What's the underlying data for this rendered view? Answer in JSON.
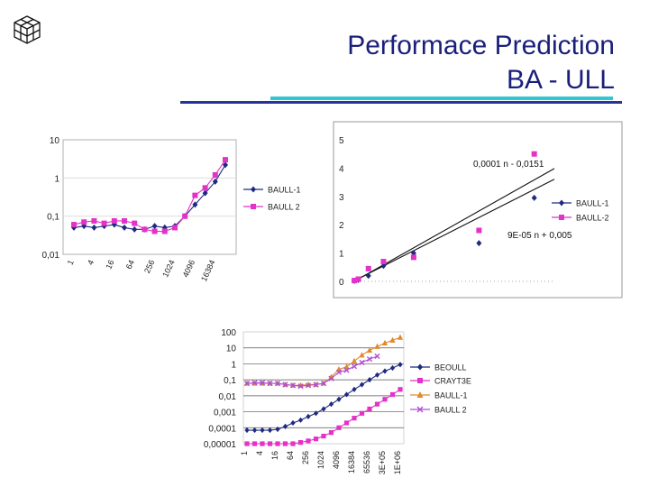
{
  "slide": {
    "title_line1": "Performace Prediction",
    "title_line2": "BA - ULL",
    "logo_icon": "cube-logo-icon",
    "colors": {
      "title": "#1a1f7a",
      "rule_blue": "#26339a",
      "rule_teal": "#33c6cf"
    }
  },
  "chart_data": [
    {
      "type": "line",
      "title": "",
      "xscale": "category",
      "yscale": "log",
      "categories": [
        "1",
        "2",
        "4",
        "8",
        "16",
        "32",
        "64",
        "128",
        "256",
        "512",
        "1024",
        "2048",
        "4096",
        "8192",
        "16384",
        "32768"
      ],
      "tick_labels": [
        "1",
        "4",
        "16",
        "64",
        "256",
        "1024",
        "4096",
        "16384"
      ],
      "y_ticks": [
        "10",
        "1",
        "0,1",
        "0,01"
      ],
      "ylim": [
        0.01,
        10
      ],
      "legend_position": "right",
      "series": [
        {
          "name": "BAULL-1",
          "marker": "diamond",
          "color": "#1f2a80",
          "values": [
            0.05,
            0.055,
            0.05,
            0.055,
            0.06,
            0.05,
            0.045,
            0.045,
            0.055,
            0.05,
            0.055,
            0.1,
            0.2,
            0.4,
            0.8,
            2.2
          ]
        },
        {
          "name": "BAULL 2",
          "marker": "square",
          "color": "#e431c8",
          "values": [
            0.06,
            0.07,
            0.075,
            0.065,
            0.075,
            0.075,
            0.065,
            0.045,
            0.04,
            0.04,
            0.05,
            0.1,
            0.35,
            0.55,
            1.2,
            3.0
          ]
        }
      ]
    },
    {
      "type": "scatter",
      "title": "",
      "xlabel": "",
      "ylabel": "",
      "ylim": [
        0,
        5
      ],
      "xlim": [
        0,
        40000
      ],
      "y_ticks": [
        "5",
        "4",
        "3",
        "2",
        "1",
        "0"
      ],
      "legend_position": "right",
      "annotations": [
        "0,0001 n - 0,0151",
        "9E-05 n + 0,005"
      ],
      "trendlines": [
        {
          "series": "BAULL-2",
          "slope": 0.0001,
          "intercept": -0.0151
        },
        {
          "series": "BAULL-1",
          "slope": 9e-05,
          "intercept": 0.005
        }
      ],
      "series": [
        {
          "name": "BAULL-1",
          "marker": "diamond",
          "color": "#1f2a80",
          "x": [
            200,
            1000,
            3000,
            6000,
            12000,
            25000,
            36000
          ],
          "y": [
            0.02,
            0.05,
            0.2,
            0.55,
            1.0,
            1.35,
            2.95
          ]
        },
        {
          "name": "BAULL-2",
          "marker": "square",
          "color": "#e431c8",
          "x": [
            200,
            1000,
            3000,
            6000,
            12000,
            25000,
            36000
          ],
          "y": [
            0.03,
            0.08,
            0.45,
            0.7,
            0.85,
            1.8,
            4.5
          ]
        }
      ]
    },
    {
      "type": "line",
      "title": "",
      "xscale": "category",
      "yscale": "log",
      "categories": [
        "1",
        "2",
        "4",
        "8",
        "16",
        "32",
        "64",
        "128",
        "256",
        "512",
        "1024",
        "2048",
        "4096",
        "8192",
        "16384",
        "32768",
        "65536",
        "131072",
        "262144",
        "524288",
        "1048576"
      ],
      "tick_labels": [
        "1",
        "4",
        "16",
        "64",
        "256",
        "1024",
        "4096",
        "16384",
        "65536",
        "3E+05",
        "1E+06"
      ],
      "y_ticks": [
        "100",
        "10",
        "1",
        "0,1",
        "0,01",
        "0,001",
        "0,0001",
        "0,00001"
      ],
      "ylim": [
        1e-05,
        100
      ],
      "legend_position": "right",
      "series": [
        {
          "name": "BEOULL",
          "marker": "diamond",
          "color": "#1f2a80",
          "values": [
            7e-05,
            7e-05,
            7e-05,
            7e-05,
            8e-05,
            0.00012,
            0.0002,
            0.0003,
            0.0005,
            0.0008,
            0.0015,
            0.003,
            0.006,
            0.012,
            0.025,
            0.05,
            0.1,
            0.2,
            0.35,
            0.55,
            0.9
          ]
        },
        {
          "name": "CRAYT3E",
          "marker": "square",
          "color": "#e431c8",
          "values": [
            1e-05,
            1e-05,
            1e-05,
            1e-05,
            1e-05,
            1e-05,
            1e-05,
            1.2e-05,
            1.5e-05,
            2e-05,
            3e-05,
            5e-05,
            0.0001,
            0.0002,
            0.0004,
            0.0008,
            0.0015,
            0.003,
            0.006,
            0.012,
            0.025
          ]
        },
        {
          "name": "BAULL-1",
          "marker": "triangle",
          "color": "#e08a2a",
          "values": [
            0.06,
            0.06,
            0.06,
            0.06,
            0.06,
            0.05,
            0.045,
            0.045,
            0.05,
            0.05,
            0.06,
            0.15,
            0.45,
            0.65,
            1.5,
            3.5,
            7,
            12,
            20,
            30,
            45
          ]
        },
        {
          "name": "BAULL 2",
          "marker": "cross",
          "color": "#b04fd6",
          "values": [
            0.06,
            0.065,
            0.065,
            0.06,
            0.06,
            0.05,
            0.045,
            0.04,
            0.045,
            0.05,
            0.06,
            0.12,
            0.3,
            0.4,
            0.7,
            1.2,
            2.0,
            3.0,
            null,
            null,
            null
          ]
        }
      ]
    }
  ]
}
